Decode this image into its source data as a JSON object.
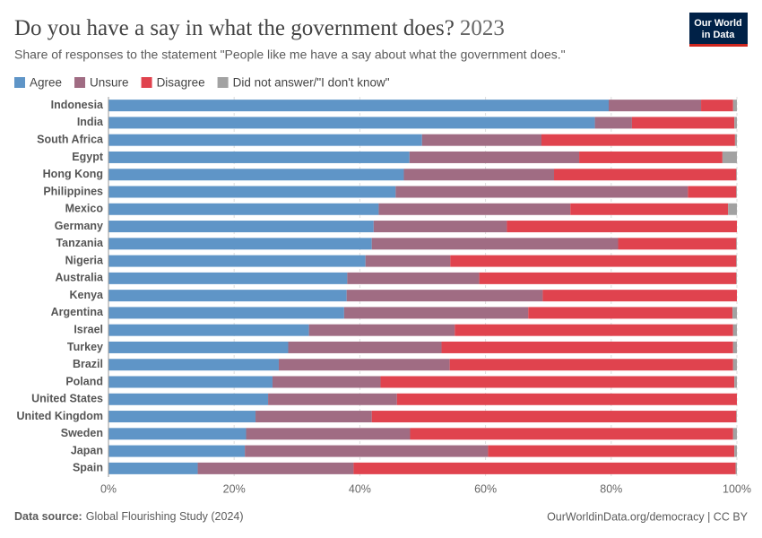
{
  "chart_data": {
    "type": "stacked-bar-horizontal",
    "title": "Do you have a say in what the government does?",
    "title_year": "2023",
    "subtitle": "Share of responses to the statement \"People like me have a say about what the government does.\"",
    "logo": [
      "Our World",
      "in Data"
    ],
    "source_label": "Data source:",
    "source": "Global Flourishing Study (2024)",
    "credit": "OurWorldinData.org/democracy | CC BY",
    "categories": [
      "Indonesia",
      "India",
      "South Africa",
      "Egypt",
      "Hong Kong",
      "Philippines",
      "Mexico",
      "Germany",
      "Tanzania",
      "Nigeria",
      "Australia",
      "Kenya",
      "Argentina",
      "Israel",
      "Turkey",
      "Brazil",
      "Poland",
      "United States",
      "United Kingdom",
      "Sweden",
      "Japan",
      "Spain"
    ],
    "series": [
      {
        "name": "Agree",
        "color": "#5f95c7",
        "values": [
          79.6,
          77.4,
          49.9,
          47.9,
          47.0,
          45.7,
          43.0,
          42.2,
          41.9,
          40.9,
          38.0,
          37.9,
          37.5,
          31.9,
          28.6,
          27.1,
          26.1,
          25.4,
          23.4,
          21.9,
          21.7,
          14.2
        ]
      },
      {
        "name": "Unsure",
        "color": "#a06c83",
        "values": [
          14.7,
          5.9,
          19.0,
          27.0,
          23.9,
          46.5,
          30.5,
          21.2,
          39.2,
          13.5,
          21.0,
          31.2,
          29.3,
          23.2,
          24.4,
          27.2,
          17.2,
          20.5,
          18.5,
          26.1,
          38.7,
          24.8
        ]
      },
      {
        "name": "Disagree",
        "color": "#e0434e",
        "values": [
          5.1,
          16.3,
          30.8,
          22.8,
          29.0,
          7.7,
          25.1,
          36.6,
          18.8,
          45.5,
          40.9,
          30.9,
          32.5,
          44.3,
          46.4,
          45.1,
          56.3,
          54.1,
          58.0,
          51.4,
          39.2,
          60.8
        ]
      },
      {
        "name": "Did not answer/\"I don't know\"",
        "color": "#a2a2a2",
        "values": [
          0.6,
          0.4,
          0.3,
          2.3,
          0.1,
          0.1,
          1.4,
          0.0,
          0.1,
          0.1,
          0.1,
          0.0,
          0.7,
          0.6,
          0.6,
          0.6,
          0.4,
          0.0,
          0.1,
          0.6,
          0.4,
          0.2
        ]
      }
    ],
    "xlim": [
      0,
      100
    ],
    "xticks": [
      {
        "value": 0,
        "label": "0%"
      },
      {
        "value": 20,
        "label": "20%"
      },
      {
        "value": 40,
        "label": "40%"
      },
      {
        "value": 60,
        "label": "60%"
      },
      {
        "value": 80,
        "label": "80%"
      },
      {
        "value": 100,
        "label": "100%"
      }
    ],
    "grid": true
  }
}
